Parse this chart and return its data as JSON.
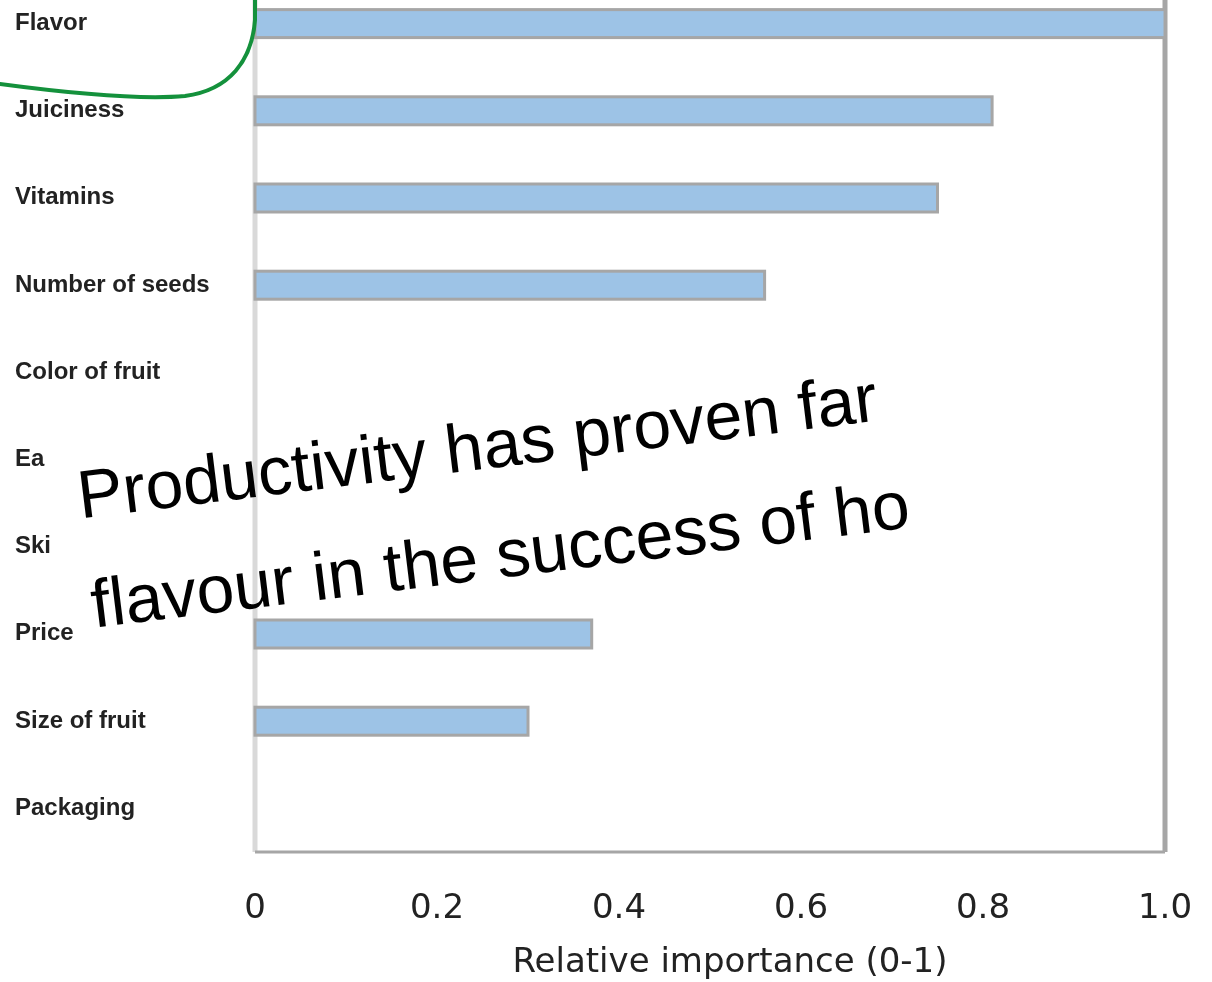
{
  "chart_data": {
    "type": "bar",
    "orientation": "horizontal",
    "categories": [
      "Flavor",
      "Juiciness",
      "Vitamins",
      "Number of seeds",
      "Color of fruit",
      "Ea",
      "Ski",
      "Price",
      "Size of fruit",
      "Packaging"
    ],
    "values": [
      1.0,
      0.81,
      0.75,
      0.56,
      null,
      null,
      null,
      0.37,
      0.3,
      0
    ],
    "color": "#9dc3e6",
    "xlabel": "Relative importance (0-1)",
    "xlim": [
      0,
      1.0
    ],
    "xticks": [
      0,
      0.2,
      0.4,
      0.6,
      0.8,
      {
        "value": 1.0,
        "label": "1.0"
      }
    ],
    "grid": false,
    "annotations": [
      "Productivity has proven far",
      "flavour in the success of ho"
    ]
  }
}
